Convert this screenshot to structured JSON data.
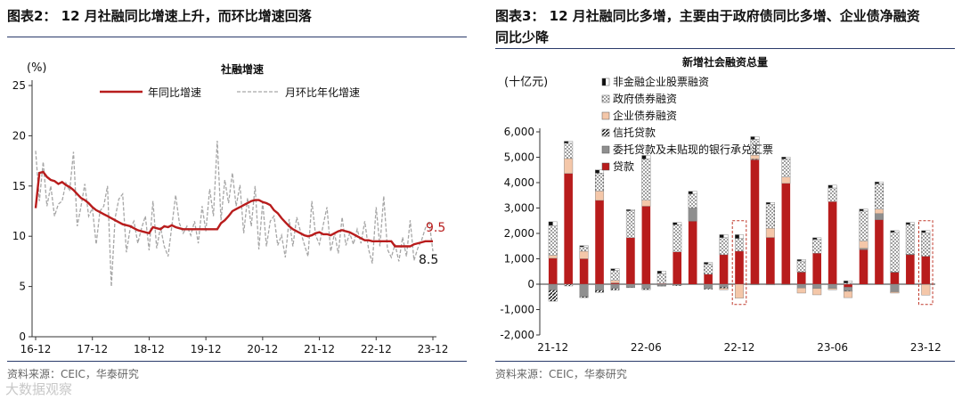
{
  "left": {
    "figure_title": "图表2： 12 月社融同比增速上升，而环比增速回落",
    "source": "资料来源：CEIC，华泰研究"
  },
  "right": {
    "figure_title_line1": "图表3： 12 月社融同比多增，主要由于政府债同比多增、企业债净融资",
    "figure_title_line2": "同比少降",
    "source": "资料来源：CEIC，华泰研究"
  },
  "watermark": "大数据观察",
  "chart_data": [
    {
      "type": "line",
      "title": "社融增速",
      "ylabel": "(%)",
      "xlabel": "",
      "ylim": [
        0,
        25
      ],
      "yticks": [
        0,
        5,
        10,
        15,
        20,
        25
      ],
      "xticks": [
        "16-12",
        "17-12",
        "18-12",
        "19-12",
        "20-12",
        "21-12",
        "22-12",
        "23-12"
      ],
      "x_start": "2016-12",
      "x_end": "2023-12",
      "grid": false,
      "legend_position": "top",
      "colors": {
        "yoy": "#b81c1c",
        "mom": "#a6a6a6"
      },
      "end_labels": [
        "9.5",
        "8.5"
      ],
      "series": [
        {
          "name": "年同比增速",
          "style": "solid",
          "values": [
            12.8,
            16.3,
            16.4,
            15.9,
            15.6,
            15.5,
            15.2,
            15.4,
            15.1,
            14.9,
            14.6,
            14.2,
            13.8,
            13.6,
            13.3,
            12.9,
            12.6,
            12.4,
            12.2,
            12.0,
            11.8,
            11.6,
            11.4,
            11.2,
            11.1,
            11.0,
            10.8,
            10.6,
            10.5,
            10.4,
            10.3,
            10.9,
            10.8,
            10.7,
            11.0,
            10.9,
            11.1,
            10.9,
            10.8,
            10.7,
            10.7,
            10.7,
            10.7,
            10.7,
            10.7,
            10.7,
            10.7,
            10.7,
            10.7,
            11.3,
            11.6,
            12.0,
            12.5,
            12.7,
            12.9,
            13.1,
            13.3,
            13.5,
            13.6,
            13.6,
            13.4,
            13.3,
            13.1,
            12.6,
            12.3,
            11.8,
            11.4,
            11.0,
            10.7,
            10.5,
            10.3,
            10.1,
            10.0,
            10.1,
            10.3,
            10.4,
            10.2,
            10.2,
            10.1,
            10.3,
            10.5,
            10.6,
            10.5,
            10.4,
            10.2,
            10.0,
            9.8,
            9.6,
            9.6,
            9.5,
            9.5,
            9.5,
            9.5,
            9.5,
            9.5,
            9.0,
            9.0,
            9.0,
            9.0,
            9.0,
            9.2,
            9.3,
            9.4,
            9.5,
            9.5,
            9.5
          ]
        },
        {
          "name": "月环比年化增速",
          "style": "dashed",
          "values": [
            18.5,
            13.5,
            17.4,
            13.0,
            15.0,
            12.0,
            13.2,
            13.5,
            15.3,
            14.5,
            18.4,
            11.0,
            13.0,
            15.2,
            12.0,
            12.8,
            9.2,
            12.5,
            13.0,
            15.0,
            5.0,
            11.8,
            13.7,
            14.2,
            8.4,
            10.8,
            11.5,
            9.3,
            10.8,
            12.0,
            8.6,
            13.5,
            8.8,
            10.9,
            9.0,
            8.0,
            11.0,
            14.1,
            11.3,
            10.3,
            11.0,
            10.1,
            11.5,
            9.3,
            13.0,
            10.5,
            14.7,
            12.0,
            19.5,
            11.6,
            15.6,
            13.3,
            16.3,
            13.0,
            15.1,
            10.3,
            13.8,
            11.0,
            15.0,
            8.7,
            13.4,
            9.0,
            11.5,
            12.0,
            9.1,
            10.1,
            7.9,
            11.7,
            9.0,
            11.9,
            10.5,
            9.2,
            8.0,
            13.5,
            10.1,
            9.2,
            11.1,
            12.9,
            8.5,
            10.3,
            8.3,
            11.9,
            9.1,
            10.3,
            9.2,
            10.7,
            9.3,
            11.5,
            8.7,
            7.3,
            12.9,
            9.0,
            14.0,
            8.7,
            7.9,
            9.2,
            7.5,
            9.9,
            8.0,
            11.6,
            7.6,
            8.8,
            9.6,
            10.8,
            11.5,
            8.5
          ]
        }
      ]
    },
    {
      "type": "bar",
      "stacked": true,
      "title": "新增社会融资总量",
      "ylabel": "(十亿元)",
      "xlabel": "",
      "ylim": [
        -2000,
        6000
      ],
      "yticks": [
        -2000,
        -1000,
        0,
        1000,
        2000,
        3000,
        4000,
        5000,
        6000
      ],
      "ytick_labels": [
        "-2,000",
        "-1,000",
        "0",
        "1,000",
        "2,000",
        "3,000",
        "4,000",
        "5,000",
        "6,000"
      ],
      "categories": [
        "21-12",
        "22-01",
        "22-02",
        "22-03",
        "22-04",
        "22-05",
        "22-06",
        "22-07",
        "22-08",
        "22-09",
        "22-10",
        "22-11",
        "22-12",
        "23-01",
        "23-02",
        "23-03",
        "23-04",
        "23-05",
        "23-06",
        "23-07",
        "23-08",
        "23-09",
        "23-10",
        "23-11",
        "23-12"
      ],
      "xtick_labels": [
        "21-12",
        "22-06",
        "22-12",
        "23-06",
        "23-12"
      ],
      "highlighted": [
        "22-12",
        "23-12"
      ],
      "legend_position": "top-left",
      "series": [
        {
          "name": "非金融企业股票融资",
          "pattern": "half",
          "values": [
            150,
            80,
            50,
            130,
            70,
            50,
            140,
            100,
            90,
            110,
            70,
            120,
            150,
            110,
            70,
            80,
            60,
            70,
            110,
            90,
            80,
            80,
            70,
            80,
            80
          ]
        },
        {
          "name": "政府债券融资",
          "pattern": "dots",
          "values": [
            1170,
            600,
            170,
            700,
            390,
            1060,
            1620,
            400,
            1070,
            550,
            400,
            670,
            500,
            620,
            950,
            710,
            420,
            540,
            540,
            40,
            1180,
            990,
            1560,
            1170,
            930
          ]
        },
        {
          "name": "企业债券融资",
          "pattern": "peach",
          "values": [
            120,
            590,
            300,
            370,
            100,
            0,
            240,
            0,
            0,
            0,
            0,
            -60,
            -550,
            150,
            360,
            250,
            -200,
            -250,
            -50,
            -250,
            290,
            180,
            -50,
            0,
            -420
          ]
        },
        {
          "name": "信托贷款",
          "pattern": "diagonal",
          "values": [
            -440,
            -60,
            -40,
            -90,
            -60,
            -10,
            -40,
            -20,
            -30,
            0,
            -40,
            -50,
            0,
            30,
            0,
            0,
            10,
            0,
            0,
            -30,
            0,
            0,
            10,
            20,
            0
          ]
        },
        {
          "name": "委托贷款及未贴现的银行承兑汇票",
          "pattern": "gray",
          "values": [
            -230,
            -10,
            -490,
            -240,
            -170,
            -120,
            -180,
            -60,
            -30,
            520,
            -160,
            -110,
            0,
            -30,
            -30,
            -30,
            -150,
            -170,
            -170,
            -130,
            50,
            240,
            -300,
            0,
            -10
          ]
        },
        {
          "name": "贷款",
          "pattern": "red",
          "values": [
            1020,
            4360,
            1000,
            3300,
            50,
            1830,
            3070,
            20,
            1270,
            2480,
            390,
            1160,
            1300,
            4900,
            1840,
            3970,
            480,
            1220,
            3250,
            -120,
            1360,
            2540,
            470,
            1160,
            1100
          ]
        }
      ],
      "colors": {
        "red": "#b81c1c",
        "peach": "#f4c7a9",
        "gray": "#8f8f8f",
        "dark": "#111111"
      }
    }
  ]
}
